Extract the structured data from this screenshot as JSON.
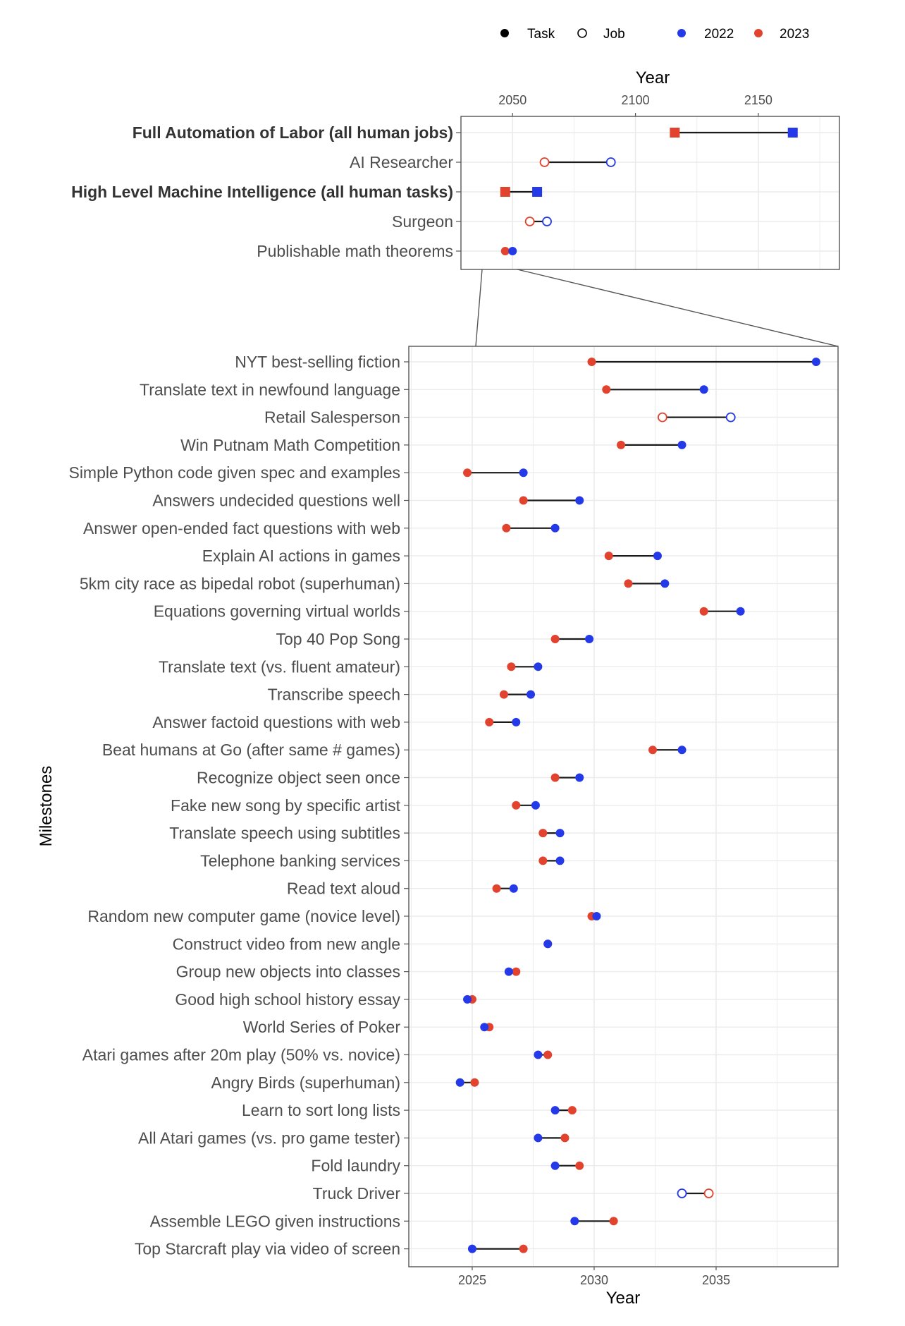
{
  "legend": {
    "task_label": "Task",
    "job_label": "Job",
    "year_2022_label": "2022",
    "year_2023_label": "2023"
  },
  "colors": {
    "c2022": "#2439e8",
    "c2023": "#e2432f",
    "line": "#1a1a1a",
    "grid": "#ebebeb",
    "panel_border": "#555555"
  },
  "chart_data": [
    {
      "type": "dumbbell",
      "title": "",
      "xlabel": "Year",
      "ylabel": "",
      "x_axis_position": "top",
      "xlim": [
        2029,
        2183
      ],
      "x_ticks": [
        2050,
        2100,
        2150
      ],
      "series": [
        {
          "name": "2022"
        },
        {
          "name": "2023"
        }
      ],
      "rows": [
        {
          "label": "Full Automation of Labor (all human jobs)",
          "v2022": 2164,
          "v2023": 2116,
          "shape": "square",
          "bold": true
        },
        {
          "label": "AI Researcher",
          "v2022": 2090,
          "v2023": 2063,
          "shape": "open",
          "bold": false
        },
        {
          "label": "High Level Machine Intelligence (all human tasks)",
          "v2022": 2060,
          "v2023": 2047,
          "shape": "square",
          "bold": true
        },
        {
          "label": "Surgeon",
          "v2022": 2064,
          "v2023": 2057,
          "shape": "open",
          "bold": false
        },
        {
          "label": "Publishable math theorems",
          "v2022": 2050,
          "v2023": 2047,
          "shape": "dot",
          "bold": false
        }
      ]
    },
    {
      "type": "dumbbell",
      "title": "",
      "xlabel": "Year",
      "ylabel": "Milestones",
      "x_axis_position": "bottom",
      "xlim": [
        2022.4,
        2040
      ],
      "x_ticks": [
        2025,
        2030,
        2035
      ],
      "series": [
        {
          "name": "2022"
        },
        {
          "name": "2023"
        }
      ],
      "rows": [
        {
          "label": "NYT best-selling fiction",
          "v2022": 2039.1,
          "v2023": 2029.9,
          "shape": "dot"
        },
        {
          "label": "Translate text in newfound language",
          "v2022": 2034.5,
          "v2023": 2030.5,
          "shape": "dot"
        },
        {
          "label": "Retail Salesperson",
          "v2022": 2035.6,
          "v2023": 2032.8,
          "shape": "open"
        },
        {
          "label": "Win Putnam Math Competition",
          "v2022": 2033.6,
          "v2023": 2031.1,
          "shape": "dot"
        },
        {
          "label": "Simple Python code given spec and examples",
          "v2022": 2027.1,
          "v2023": 2024.8,
          "shape": "dot"
        },
        {
          "label": "Answers undecided questions well",
          "v2022": 2029.4,
          "v2023": 2027.1,
          "shape": "dot"
        },
        {
          "label": "Answer open-ended fact questions with web",
          "v2022": 2028.4,
          "v2023": 2026.4,
          "shape": "dot"
        },
        {
          "label": "Explain AI actions in games",
          "v2022": 2032.6,
          "v2023": 2030.6,
          "shape": "dot"
        },
        {
          "label": "5km city race as bipedal robot (superhuman)",
          "v2022": 2032.9,
          "v2023": 2031.4,
          "shape": "dot"
        },
        {
          "label": "Equations governing virtual worlds",
          "v2022": 2036.0,
          "v2023": 2034.5,
          "shape": "dot"
        },
        {
          "label": "Top 40 Pop Song",
          "v2022": 2029.8,
          "v2023": 2028.4,
          "shape": "dot"
        },
        {
          "label": "Translate text (vs. fluent amateur)",
          "v2022": 2027.7,
          "v2023": 2026.6,
          "shape": "dot"
        },
        {
          "label": "Transcribe speech",
          "v2022": 2027.4,
          "v2023": 2026.3,
          "shape": "dot"
        },
        {
          "label": "Answer factoid questions with web",
          "v2022": 2026.8,
          "v2023": 2025.7,
          "shape": "dot"
        },
        {
          "label": "Beat humans at Go (after same # games)",
          "v2022": 2033.6,
          "v2023": 2032.4,
          "shape": "dot"
        },
        {
          "label": "Recognize object seen once",
          "v2022": 2029.4,
          "v2023": 2028.4,
          "shape": "dot"
        },
        {
          "label": "Fake new song by specific artist",
          "v2022": 2027.6,
          "v2023": 2026.8,
          "shape": "dot"
        },
        {
          "label": "Translate speech using subtitles",
          "v2022": 2028.6,
          "v2023": 2027.9,
          "shape": "dot"
        },
        {
          "label": "Telephone banking services",
          "v2022": 2028.6,
          "v2023": 2027.9,
          "shape": "dot"
        },
        {
          "label": "Read text aloud",
          "v2022": 2026.7,
          "v2023": 2026.0,
          "shape": "dot"
        },
        {
          "label": "Random new computer game (novice level)",
          "v2022": 2030.1,
          "v2023": 2029.9,
          "shape": "dot"
        },
        {
          "label": "Construct video from new angle",
          "v2022": 2028.1,
          "v2023": 2028.1,
          "shape": "dot"
        },
        {
          "label": "Group new objects into classes",
          "v2022": 2026.5,
          "v2023": 2026.8,
          "shape": "dot"
        },
        {
          "label": "Good high school history essay",
          "v2022": 2024.8,
          "v2023": 2025.0,
          "shape": "dot"
        },
        {
          "label": "World Series of Poker",
          "v2022": 2025.5,
          "v2023": 2025.7,
          "shape": "dot"
        },
        {
          "label": "Atari games after 20m play (50% vs. novice)",
          "v2022": 2027.7,
          "v2023": 2028.1,
          "shape": "dot"
        },
        {
          "label": "Angry Birds (superhuman)",
          "v2022": 2024.5,
          "v2023": 2025.1,
          "shape": "dot"
        },
        {
          "label": "Learn to sort long lists",
          "v2022": 2028.4,
          "v2023": 2029.1,
          "shape": "dot"
        },
        {
          "label": "All Atari games (vs. pro game tester)",
          "v2022": 2027.7,
          "v2023": 2028.8,
          "shape": "dot"
        },
        {
          "label": "Fold laundry",
          "v2022": 2028.4,
          "v2023": 2029.4,
          "shape": "dot"
        },
        {
          "label": "Truck Driver",
          "v2022": 2033.6,
          "v2023": 2034.7,
          "shape": "open"
        },
        {
          "label": "Assemble LEGO given instructions",
          "v2022": 2029.2,
          "v2023": 2030.8,
          "shape": "dot"
        },
        {
          "label": "Top Starcraft play via video of screen",
          "v2022": 2025.0,
          "v2023": 2027.1,
          "shape": "dot"
        }
      ]
    }
  ]
}
